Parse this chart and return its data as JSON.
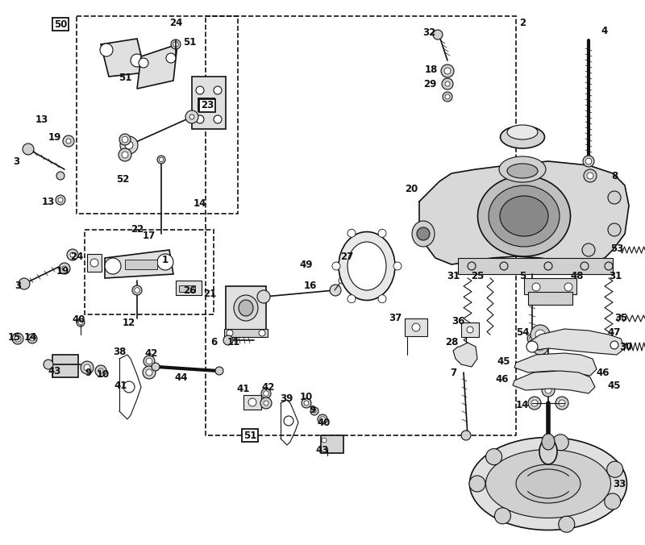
{
  "bg_color": "#ffffff",
  "line_color": "#111111",
  "label_color": "#000000",
  "fig_width": 8.0,
  "fig_height": 6.76,
  "dpi": 100
}
